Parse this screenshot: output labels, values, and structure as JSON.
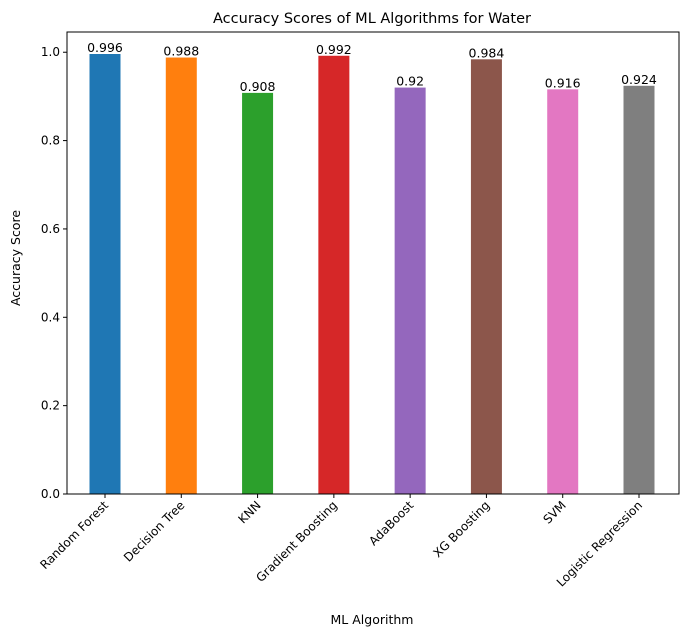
{
  "chart_data": {
    "type": "bar",
    "title": "Accuracy Scores of ML Algorithms for Water",
    "xlabel": "ML Algorithm",
    "ylabel": "Accuracy Score",
    "categories": [
      "Random Forest",
      "Decision Tree",
      "KNN",
      "Gradient Boosting",
      "AdaBoost",
      "XG Boosting",
      "SVM",
      "Logistic Regression"
    ],
    "values": [
      0.996,
      0.988,
      0.908,
      0.992,
      0.92,
      0.984,
      0.916,
      0.924
    ],
    "value_labels": [
      "0.996",
      "0.988",
      "0.908",
      "0.992",
      "0.92",
      "0.984",
      "0.916",
      "0.924"
    ],
    "colors": [
      "#1f77b4",
      "#ff7f0e",
      "#2ca02c",
      "#d62728",
      "#9467bd",
      "#8c564b",
      "#e377c2",
      "#7f7f7f"
    ],
    "ylim": [
      0,
      1.0458
    ],
    "yticks": [
      0.0,
      0.2,
      0.4,
      0.6,
      0.8,
      1.0
    ],
    "ytick_labels": [
      "0.0",
      "0.2",
      "0.4",
      "0.6",
      "0.8",
      "1.0"
    ],
    "xtick_rotation_deg": 45,
    "grid": false,
    "legend": false
  }
}
